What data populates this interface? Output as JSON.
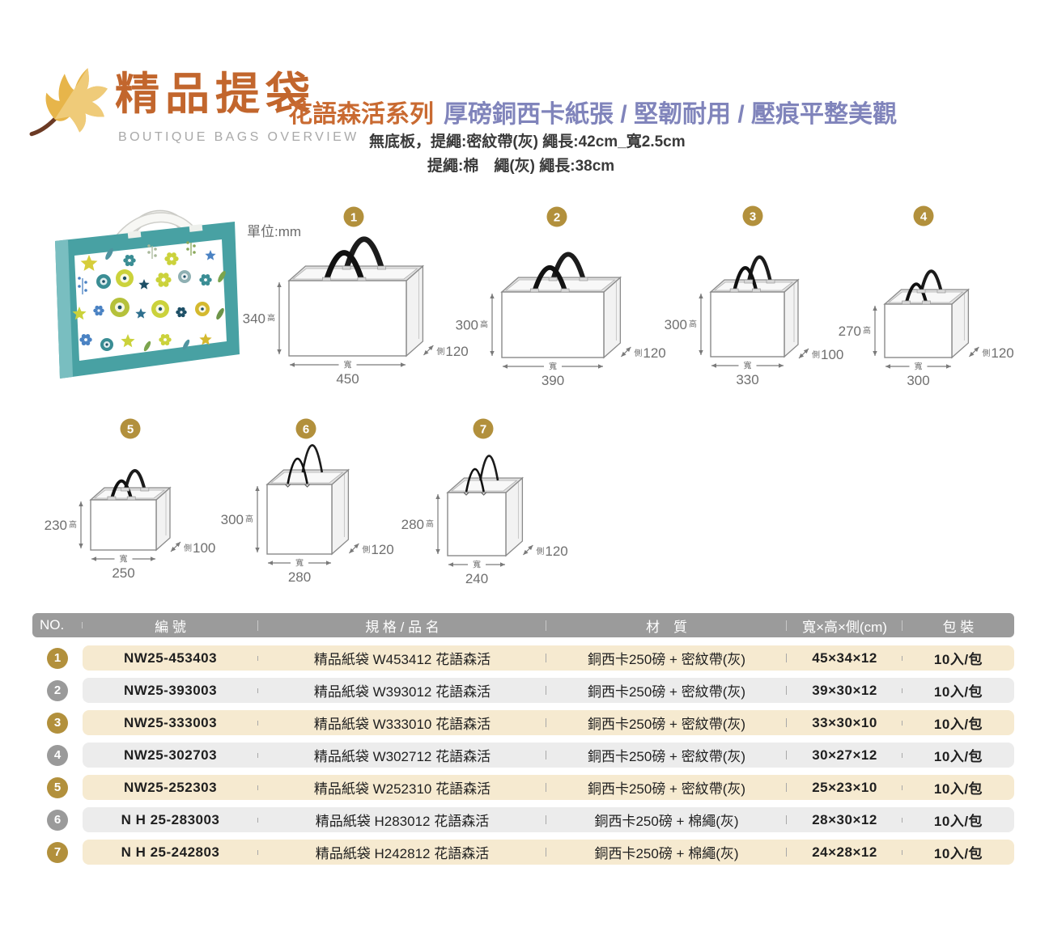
{
  "header": {
    "title": "精品提袋",
    "subtitle": "BOUTIQUE BAGS OVERVIEW",
    "series": "花語森活系列",
    "features": "厚磅銅西卡紙張 / 堅韌耐用 / 壓痕平整美觀",
    "spec_line1": "無底板，提繩:密紋帶(灰) 繩長:42cm_寬2.5cm",
    "spec_line2": "提繩:棉　繩(灰) 繩長:38cm",
    "logo_icon": "maple-leaf-icon"
  },
  "unit_label": "單位:mm",
  "dim_labels": {
    "height": "高",
    "width": "寬",
    "side": "側"
  },
  "diagrams": [
    {
      "no": "1",
      "width": "450",
      "height": "340",
      "side": "120",
      "handle": "band"
    },
    {
      "no": "2",
      "width": "390",
      "height": "300",
      "side": "120",
      "handle": "band"
    },
    {
      "no": "3",
      "width": "330",
      "height": "300",
      "side": "100",
      "handle": "band"
    },
    {
      "no": "4",
      "width": "300",
      "height": "270",
      "side": "120",
      "handle": "band"
    },
    {
      "no": "5",
      "width": "250",
      "height": "230",
      "side": "100",
      "handle": "band"
    },
    {
      "no": "6",
      "width": "280",
      "height": "300",
      "side": "120",
      "handle": "rope"
    },
    {
      "no": "7",
      "width": "240",
      "height": "280",
      "side": "120",
      "handle": "rope"
    }
  ],
  "table": {
    "columns": [
      "NO.",
      "編 號",
      "規 格 / 品 名",
      "材　質",
      "寬×高×側(cm)",
      "包 裝"
    ],
    "rows": [
      {
        "no": "1",
        "code": "NW25-453403",
        "name": "精品紙袋 W453412 花語森活",
        "material": "銅西卡250磅 + 密紋帶(灰)",
        "size": "45×34×12",
        "pack": "10入/包",
        "tone": "cream"
      },
      {
        "no": "2",
        "code": "NW25-393003",
        "name": "精品紙袋 W393012 花語森活",
        "material": "銅西卡250磅 + 密紋帶(灰)",
        "size": "39×30×12",
        "pack": "10入/包",
        "tone": "gray"
      },
      {
        "no": "3",
        "code": "NW25-333003",
        "name": "精品紙袋 W333010 花語森活",
        "material": "銅西卡250磅 + 密紋帶(灰)",
        "size": "33×30×10",
        "pack": "10入/包",
        "tone": "cream"
      },
      {
        "no": "4",
        "code": "NW25-302703",
        "name": "精品紙袋 W302712 花語森活",
        "material": "銅西卡250磅 + 密紋帶(灰)",
        "size": "30×27×12",
        "pack": "10入/包",
        "tone": "gray"
      },
      {
        "no": "5",
        "code": "NW25-252303",
        "name": "精品紙袋 W252310 花語森活",
        "material": "銅西卡250磅 + 密紋帶(灰)",
        "size": "25×23×10",
        "pack": "10入/包",
        "tone": "cream"
      },
      {
        "no": "6",
        "code": "N H 25-283003",
        "name": "精品紙袋 H283012 花語森活",
        "material": "銅西卡250磅 + 棉繩(灰)",
        "size": "28×30×12",
        "pack": "10入/包",
        "tone": "gray"
      },
      {
        "no": "7",
        "code": "N H 25-242803",
        "name": "精品紙袋 H242812 花語森活",
        "material": "銅西卡250磅 + 棉繩(灰)",
        "size": "24×28×12",
        "pack": "10入/包",
        "tone": "cream"
      }
    ]
  },
  "colors": {
    "title_orange": "#c2662d",
    "series_orange": "#c96a31",
    "feature_purple": "#8084bb",
    "badge_gold": "#b2903c",
    "badge_gray": "#9a9a9a",
    "header_bar_gray": "#9b9b9b",
    "row_cream": "#f6ead0",
    "row_gray": "#ececec",
    "bag_teal": "#48a1a3",
    "diagram_line": "#7a7a7a"
  }
}
